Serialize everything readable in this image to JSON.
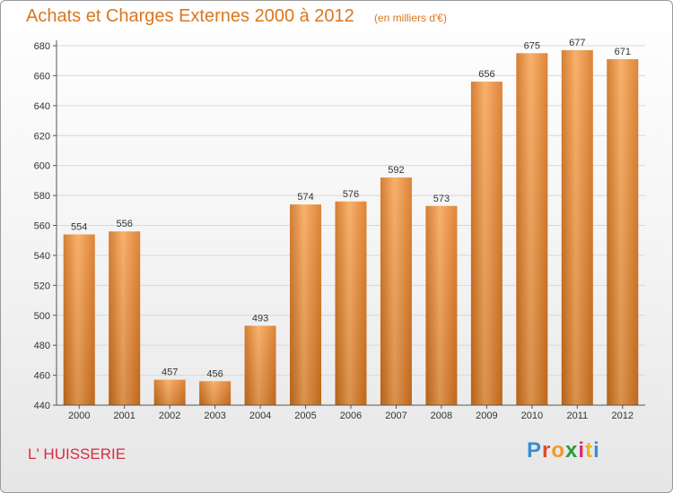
{
  "chart_data": {
    "type": "bar",
    "title": "Achats et Charges Externes 2000 à 2012",
    "subtitle": "(en milliers d'€)",
    "categories": [
      "2000",
      "2001",
      "2002",
      "2003",
      "2004",
      "2005",
      "2006",
      "2007",
      "2008",
      "2009",
      "2010",
      "2011",
      "2012"
    ],
    "values": [
      554,
      556,
      457,
      456,
      493,
      574,
      576,
      592,
      573,
      656,
      675,
      677,
      671
    ],
    "ylim": [
      440,
      680
    ],
    "yticks": [
      440,
      460,
      480,
      500,
      520,
      540,
      560,
      580,
      600,
      620,
      640,
      660,
      680
    ],
    "grid": true,
    "bar_color": "#e8862d"
  },
  "place_name": "L' HUISSERIE",
  "logo": "Proxiti"
}
